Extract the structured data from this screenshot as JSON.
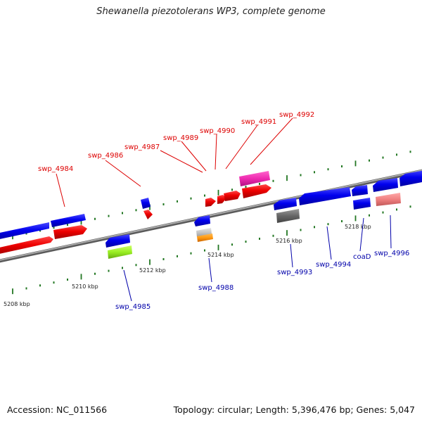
{
  "title": "Shewanella piezotolerans WP3, complete genome",
  "footer": {
    "accession": "Accession: NC_011566",
    "summary": "Topology: circular; Length: 5,396,476 bp; Genes: 5,047"
  },
  "colors": {
    "forward_label": "#dd0000",
    "reverse_label": "#0000aa",
    "backbone": "#8a8a8a",
    "tick": "#227722"
  },
  "ruler_labels": [
    "5208 kbp",
    "5210 kbp",
    "5212 kbp",
    "5214 kbp",
    "5216 kbp",
    "5218 kbp"
  ],
  "genes_forward": [
    {
      "name": "swp_4984"
    },
    {
      "name": "swp_4986"
    },
    {
      "name": "swp_4987"
    },
    {
      "name": "swp_4989"
    },
    {
      "name": "swp_4990"
    },
    {
      "name": "swp_4991"
    },
    {
      "name": "swp_4992"
    }
  ],
  "genes_reverse": [
    {
      "name": "swp_4985"
    },
    {
      "name": "swp_4988"
    },
    {
      "name": "swp_4993"
    },
    {
      "name": "swp_4994"
    },
    {
      "name": "coaD"
    },
    {
      "name": "swp_4996"
    }
  ]
}
